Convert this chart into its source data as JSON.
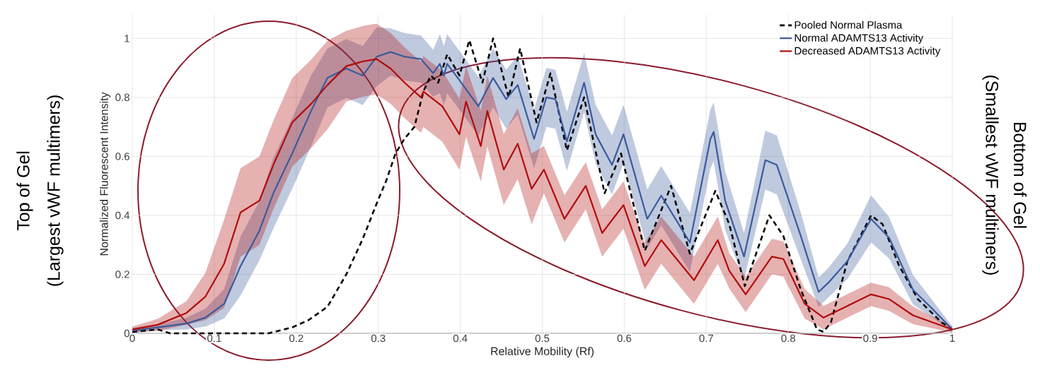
{
  "chart_data": {
    "type": "line",
    "xlabel": "Relative Mobility (Rf)",
    "ylabel": "Normalized Fluorescent Intensity",
    "annotations": [
      "Top of Gel",
      "(Largest vWF multimers)",
      "Bottom of Gel",
      "(Smallest vWF multimers)"
    ],
    "xlim": [
      0,
      1
    ],
    "ylim": [
      0,
      1.08
    ],
    "xticks": [
      0,
      0.1,
      0.2,
      0.3,
      0.4,
      0.5,
      0.6,
      0.7,
      0.8,
      0.9,
      1
    ],
    "yticks": [
      0,
      0.2,
      0.4,
      0.6,
      0.8,
      1
    ],
    "grid": true,
    "legend": "top right",
    "series": [
      {
        "name": "Pooled Normal Plasma",
        "color": "#000000",
        "line_style": "dashed",
        "x": [
          0,
          0.031,
          0.046,
          0.166,
          0.195,
          0.215,
          0.238,
          0.261,
          0.281,
          0.298,
          0.31,
          0.321,
          0.332,
          0.344,
          0.355,
          0.364,
          0.373,
          0.384,
          0.399,
          0.411,
          0.427,
          0.44,
          0.459,
          0.473,
          0.493,
          0.51,
          0.53,
          0.551,
          0.576,
          0.596,
          0.625,
          0.657,
          0.68,
          0.711,
          0.728,
          0.747,
          0.777,
          0.794,
          0.815,
          0.835,
          0.843,
          0.852,
          0.872,
          0.901,
          0.915,
          0.935,
          0.958,
          0.987,
          1
        ],
        "values": [
          0.005,
          0.013,
          0,
          0,
          0.02,
          0.045,
          0.09,
          0.2,
          0.32,
          0.44,
          0.52,
          0.61,
          0.66,
          0.7,
          0.82,
          0.874,
          0.85,
          0.946,
          0.874,
          0.994,
          0.85,
          1,
          0.8,
          0.966,
          0.715,
          0.882,
          0.62,
          0.8,
          0.475,
          0.61,
          0.28,
          0.5,
          0.27,
          0.483,
          0.37,
          0.16,
          0.4,
          0.33,
          0.15,
          0.013,
          0.005,
          0.037,
          0.244,
          0.4,
          0.37,
          0.23,
          0.116,
          0.037,
          0.013
        ]
      },
      {
        "name": "Normal ADAMTS13 Activity",
        "color": "#3a5a9c",
        "line_style": "solid",
        "x": [
          0,
          0.031,
          0.066,
          0.089,
          0.112,
          0.132,
          0.155,
          0.172,
          0.195,
          0.218,
          0.238,
          0.261,
          0.281,
          0.298,
          0.315,
          0.332,
          0.352,
          0.367,
          0.375,
          0.38,
          0.384,
          0.399,
          0.422,
          0.44,
          0.456,
          0.47,
          0.49,
          0.505,
          0.516,
          0.53,
          0.551,
          0.565,
          0.585,
          0.599,
          0.628,
          0.645,
          0.68,
          0.705,
          0.709,
          0.723,
          0.746,
          0.772,
          0.786,
          0.815,
          0.837,
          0.849,
          0.872,
          0.901,
          0.923,
          0.952,
          0.975,
          1
        ],
        "values": [
          0.009,
          0.02,
          0.033,
          0.053,
          0.1,
          0.228,
          0.348,
          0.475,
          0.61,
          0.754,
          0.866,
          0.898,
          0.874,
          0.938,
          0.954,
          0.938,
          0.93,
          0.882,
          0.914,
          0.874,
          0.914,
          0.858,
          0.77,
          0.866,
          0.794,
          0.842,
          0.659,
          0.8,
          0.794,
          0.651,
          0.85,
          0.675,
          0.571,
          0.675,
          0.388,
          0.467,
          0.308,
          0.659,
          0.683,
          0.45,
          0.26,
          0.587,
          0.571,
          0.332,
          0.14,
          0.172,
          0.244,
          0.388,
          0.324,
          0.148,
          0.085,
          0.013
        ],
        "lower": [
          0,
          0.01,
          0.013,
          0.023,
          0.05,
          0.128,
          0.248,
          0.355,
          0.49,
          0.634,
          0.766,
          0.798,
          0.774,
          0.838,
          0.874,
          0.858,
          0.85,
          0.802,
          0.814,
          0.774,
          0.814,
          0.758,
          0.67,
          0.766,
          0.694,
          0.742,
          0.559,
          0.7,
          0.694,
          0.551,
          0.75,
          0.575,
          0.471,
          0.575,
          0.288,
          0.367,
          0.208,
          0.559,
          0.583,
          0.35,
          0.18,
          0.487,
          0.471,
          0.252,
          0.09,
          0.122,
          0.184,
          0.308,
          0.254,
          0.098,
          0.055,
          0.003
        ],
        "upper": [
          0.019,
          0.03,
          0.053,
          0.083,
          0.15,
          0.328,
          0.448,
          0.595,
          0.73,
          0.874,
          0.966,
          0.998,
          0.974,
          1.038,
          1.034,
          1.018,
          1.01,
          0.962,
          1.014,
          0.974,
          1.014,
          0.958,
          0.87,
          0.966,
          0.894,
          0.942,
          0.759,
          0.9,
          0.894,
          0.751,
          0.95,
          0.775,
          0.671,
          0.775,
          0.488,
          0.567,
          0.408,
          0.759,
          0.783,
          0.55,
          0.34,
          0.687,
          0.671,
          0.412,
          0.19,
          0.222,
          0.304,
          0.468,
          0.394,
          0.198,
          0.115,
          0.023
        ]
      },
      {
        "name": "Decreased ADAMTS13 Activity",
        "color": "#b00c0c",
        "line_style": "solid",
        "x": [
          0,
          0.031,
          0.066,
          0.089,
          0.112,
          0.132,
          0.155,
          0.172,
          0.195,
          0.218,
          0.238,
          0.261,
          0.281,
          0.298,
          0.315,
          0.332,
          0.352,
          0.355,
          0.378,
          0.399,
          0.407,
          0.425,
          0.433,
          0.453,
          0.47,
          0.487,
          0.502,
          0.527,
          0.553,
          0.573,
          0.599,
          0.625,
          0.645,
          0.685,
          0.714,
          0.728,
          0.748,
          0.78,
          0.794,
          0.82,
          0.843,
          0.872,
          0.901,
          0.923,
          0.952,
          1
        ],
        "values": [
          0.013,
          0.029,
          0.069,
          0.124,
          0.236,
          0.41,
          0.45,
          0.571,
          0.715,
          0.778,
          0.842,
          0.906,
          0.922,
          0.93,
          0.898,
          0.85,
          0.8,
          0.82,
          0.77,
          0.675,
          0.786,
          0.635,
          0.754,
          0.555,
          0.643,
          0.49,
          0.555,
          0.388,
          0.5,
          0.34,
          0.435,
          0.228,
          0.316,
          0.18,
          0.316,
          0.212,
          0.132,
          0.26,
          0.252,
          0.1,
          0.053,
          0.093,
          0.132,
          0.116,
          0.061,
          0.013
        ],
        "lower": [
          0.003,
          0.009,
          0.029,
          0.044,
          0.086,
          0.26,
          0.3,
          0.421,
          0.565,
          0.628,
          0.692,
          0.786,
          0.802,
          0.81,
          0.778,
          0.73,
          0.68,
          0.7,
          0.65,
          0.555,
          0.666,
          0.515,
          0.634,
          0.435,
          0.523,
          0.37,
          0.475,
          0.308,
          0.42,
          0.26,
          0.355,
          0.148,
          0.236,
          0.1,
          0.236,
          0.152,
          0.072,
          0.2,
          0.192,
          0.05,
          0.013,
          0.053,
          0.092,
          0.076,
          0.031,
          0.003
        ],
        "upper": [
          0.023,
          0.049,
          0.109,
          0.204,
          0.386,
          0.56,
          0.6,
          0.721,
          0.865,
          0.928,
          0.992,
          1.026,
          1.042,
          1.05,
          1.018,
          0.97,
          0.92,
          0.94,
          0.89,
          0.795,
          0.906,
          0.755,
          0.874,
          0.675,
          0.763,
          0.61,
          0.635,
          0.468,
          0.58,
          0.42,
          0.515,
          0.308,
          0.396,
          0.26,
          0.396,
          0.272,
          0.192,
          0.32,
          0.312,
          0.15,
          0.093,
          0.133,
          0.172,
          0.156,
          0.091,
          0.023
        ]
      }
    ]
  }
}
